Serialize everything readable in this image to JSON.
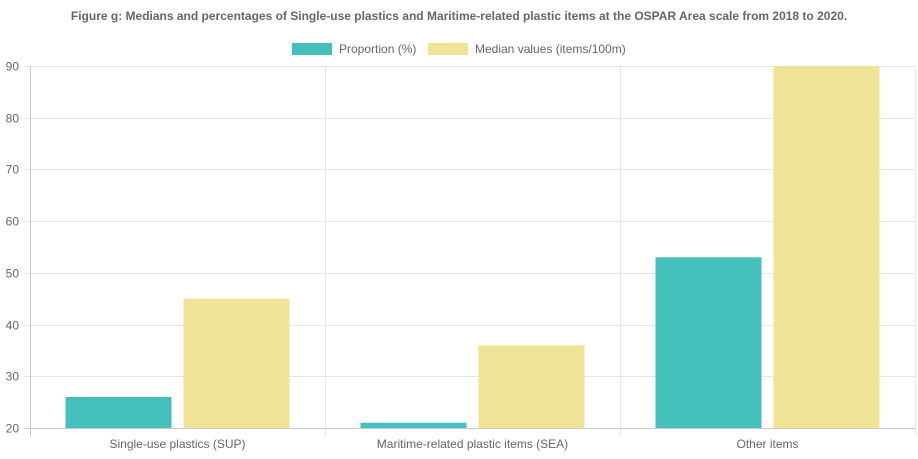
{
  "chart_data": {
    "type": "bar",
    "title": "Figure g: Medians and percentages of Single-use plastics and Maritime-related plastic items at the OSPAR Area scale from 2018 to 2020.",
    "categories": [
      "Single-use plastics (SUP)",
      "Maritime-related plastic items (SEA)",
      "Other items"
    ],
    "series": [
      {
        "name": "Proportion (%)",
        "values": [
          26,
          21,
          53
        ],
        "color": "#43bfbc"
      },
      {
        "name": "Median values (items/100m)",
        "values": [
          45,
          36,
          90
        ],
        "color": "#efe397"
      }
    ],
    "ylim": [
      20,
      90
    ],
    "yticks": [
      "20",
      "30",
      "40",
      "50",
      "60",
      "70",
      "80",
      "90"
    ],
    "xlabel": "",
    "ylabel": "",
    "grid": true,
    "legend_position": "top"
  }
}
